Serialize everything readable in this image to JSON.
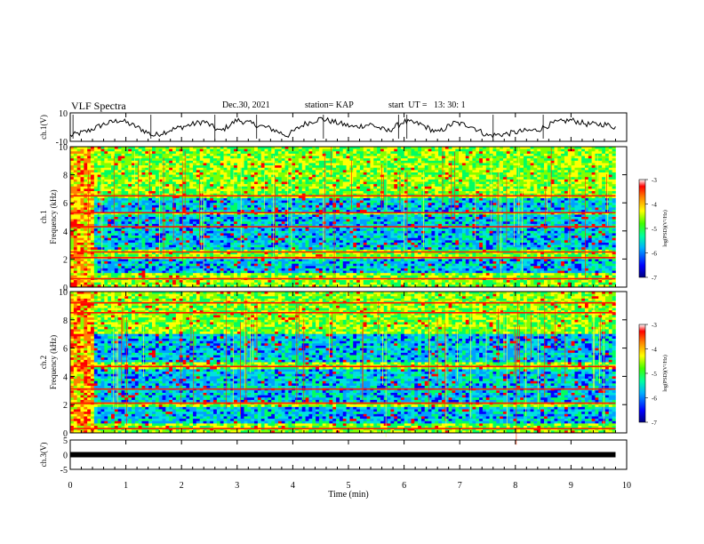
{
  "header": {
    "title": "VLF Spectra",
    "date": "Dec.30, 2021",
    "station": "station= KAP",
    "start": "start  UT =   13: 30: 1"
  },
  "chart_data": [
    {
      "type": "line",
      "panel": "ch1-waveform",
      "ylabel": "ch.1(V)",
      "ylim": [
        -10,
        10
      ],
      "yticks": [
        "10",
        "-10"
      ],
      "xlim": [
        0,
        10
      ],
      "series": [
        {
          "x": [
            0,
            0.3,
            0.6,
            0.9,
            1.2,
            1.5,
            1.8,
            2.1,
            2.4,
            2.7,
            3.0,
            3.3,
            3.6,
            3.9,
            4.2,
            4.5,
            4.8,
            5.1,
            5.4,
            5.7,
            6.0,
            6.3,
            6.6,
            6.9,
            7.2,
            7.5,
            7.8,
            8.1,
            8.4,
            8.7,
            9.0,
            9.3,
            9.6,
            9.8
          ],
          "values": [
            -6,
            -3,
            2,
            5,
            0,
            -6,
            -2,
            1,
            4,
            -3,
            5,
            2,
            -1,
            -6,
            2,
            6,
            3,
            0,
            2,
            -3,
            4,
            2,
            -4,
            3,
            1,
            -6,
            -5,
            -3,
            -2,
            3,
            5,
            2,
            2,
            0
          ]
        }
      ]
    },
    {
      "type": "heatmap",
      "panel": "ch1-spectrogram",
      "ylabel": "ch.1\nFrequency  (kHz)",
      "ylim": [
        0,
        10
      ],
      "yticks": [
        "0",
        "2",
        "4",
        "6",
        "8",
        "10"
      ],
      "xlim": [
        0,
        10
      ],
      "colorbar": {
        "label": "log(PSD)(V²/Hz)",
        "range": [
          -7,
          -3
        ],
        "ticks": [
          "-3",
          "-4",
          "-5",
          "-6",
          "-7"
        ]
      },
      "lines_kHz": [
        6.5,
        5.3,
        4.3,
        2.5,
        2.1,
        0.6
      ],
      "quiet_bands_kHz": [
        [
          5.4,
          6.3
        ],
        [
          3.4,
          5.1
        ],
        [
          2.6,
          3.3
        ],
        [
          1.0,
          2.0
        ]
      ]
    },
    {
      "type": "heatmap",
      "panel": "ch2-spectrogram",
      "ylabel": "ch.2\nFrequency  (kHz)",
      "ylim": [
        0,
        10
      ],
      "yticks": [
        "0",
        "2",
        "4",
        "6",
        "8",
        "10"
      ],
      "xlim": [
        0,
        10
      ],
      "colorbar": {
        "label": "log(PSD)(V²/Hz)",
        "range": [
          -7,
          -3
        ],
        "ticks": [
          "-3",
          "-4",
          "-5",
          "-6",
          "-7"
        ]
      },
      "lines_kHz": [
        9.2,
        8.5,
        4.7,
        3.1,
        2.1,
        0.3
      ],
      "quiet_bands_kHz": [
        [
          5.0,
          7.0
        ],
        [
          2.2,
          4.5
        ],
        [
          0.6,
          1.8
        ]
      ]
    },
    {
      "type": "line",
      "panel": "ch3-waveform",
      "ylabel": "ch.3(V)",
      "ylim": [
        -5,
        5
      ],
      "yticks": [
        "5",
        "0",
        "-5"
      ],
      "xlim": [
        0,
        10
      ],
      "xlabel": "Time  (min)",
      "xticks": [
        "0",
        "1",
        "2",
        "3",
        "4",
        "5",
        "6",
        "7",
        "8",
        "9",
        "10"
      ],
      "series": [
        {
          "x": [
            0,
            9.8
          ],
          "values": [
            0,
            0
          ]
        }
      ]
    }
  ],
  "colors": {
    "scale": [
      "#000080",
      "#0000ff",
      "#00a0ff",
      "#00e0e0",
      "#00ff60",
      "#80ff00",
      "#ffff00",
      "#ff8000",
      "#ff0000",
      "#b00000"
    ]
  }
}
